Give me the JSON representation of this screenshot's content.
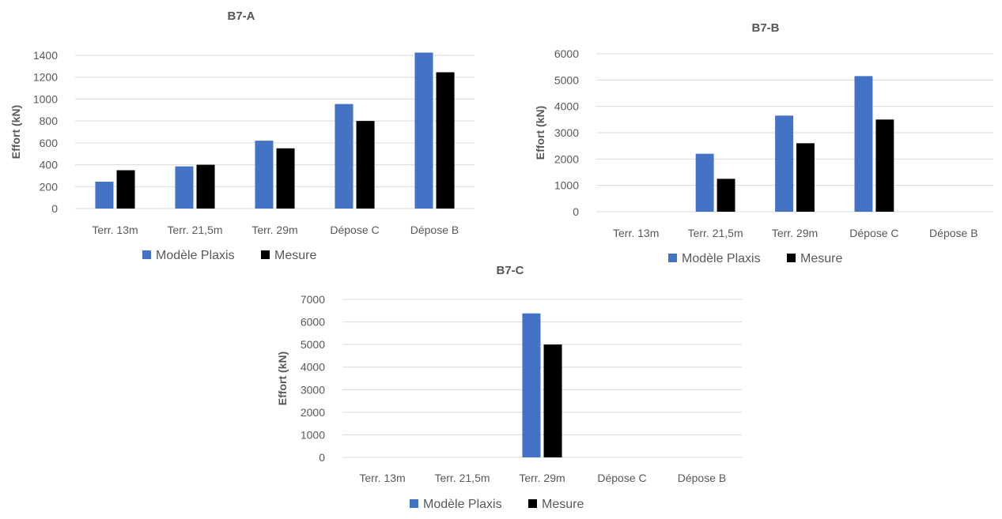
{
  "colors": {
    "modele": "#4472C4",
    "mesure": "#000000"
  },
  "chart_data": [
    {
      "type": "bar",
      "title": "B7-A",
      "xlabel": "",
      "ylabel": "Effort (kN)",
      "ylim": [
        0,
        1400
      ],
      "yticks": [
        "0",
        "200",
        "400",
        "600",
        "800",
        "1000",
        "1200",
        "1400"
      ],
      "categories": [
        "Terr. 13m",
        "Terr. 21,5m",
        "Terr. 29m",
        "Dépose C",
        "Dépose B"
      ],
      "series": [
        {
          "name": "Modèle Plaxis",
          "values": [
            245,
            385,
            620,
            955,
            1425
          ]
        },
        {
          "name": "Mesure",
          "values": [
            350,
            400,
            550,
            800,
            1245
          ]
        }
      ],
      "legend": "bottom",
      "grid": true
    },
    {
      "type": "bar",
      "title": "B7-B",
      "xlabel": "",
      "ylabel": "Effort (kN)",
      "ylim": [
        0,
        6000
      ],
      "yticks": [
        "0",
        "1000",
        "2000",
        "3000",
        "4000",
        "5000",
        "6000"
      ],
      "categories": [
        "Terr. 13m",
        "Terr. 21,5m",
        "Terr. 29m",
        "Dépose C",
        "Dépose B"
      ],
      "series": [
        {
          "name": "Modèle Plaxis",
          "values": [
            0,
            2200,
            3650,
            5150,
            0
          ]
        },
        {
          "name": "Mesure",
          "values": [
            0,
            1250,
            2600,
            3500,
            0
          ]
        }
      ],
      "legend": "bottom",
      "grid": true
    },
    {
      "type": "bar",
      "title": "B7-C",
      "xlabel": "",
      "ylabel": "Effort (kN)",
      "ylim": [
        0,
        7000
      ],
      "yticks": [
        "0",
        "1000",
        "2000",
        "3000",
        "4000",
        "5000",
        "6000",
        "7000"
      ],
      "categories": [
        "Terr. 13m",
        "Terr. 21,5m",
        "Terr. 29m",
        "Dépose C",
        "Dépose B"
      ],
      "series": [
        {
          "name": "Modèle Plaxis",
          "values": [
            0,
            0,
            6380,
            0,
            0
          ]
        },
        {
          "name": "Mesure",
          "values": [
            0,
            0,
            5000,
            0,
            0
          ]
        }
      ],
      "legend": "bottom",
      "grid": true
    }
  ]
}
